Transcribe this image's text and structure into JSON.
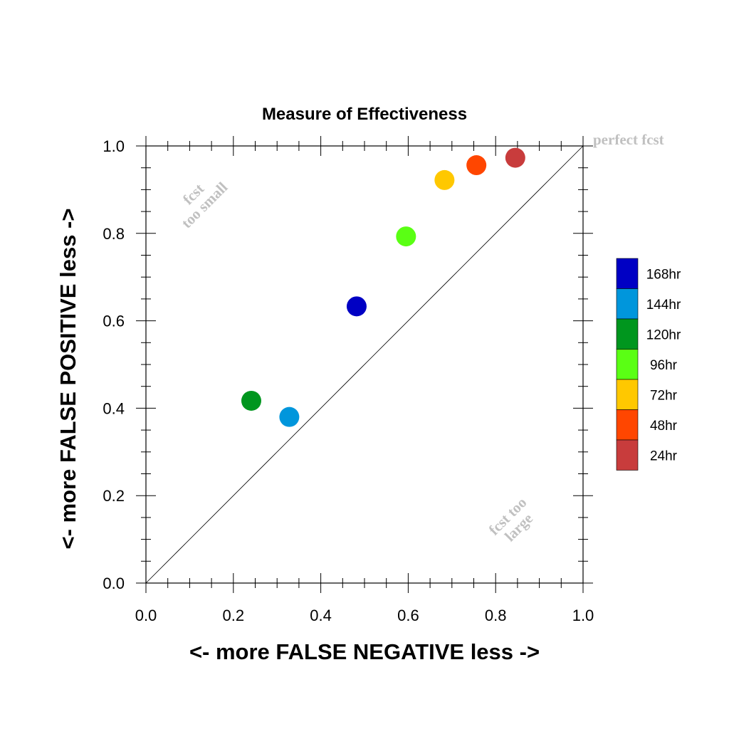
{
  "chart_data": {
    "type": "scatter",
    "title": "Measure of Effectiveness",
    "xlabel": "<- more   FALSE NEGATIVE   less ->",
    "ylabel": "<- more   FALSE POSITIVE   less ->",
    "xlim": [
      0.0,
      1.0
    ],
    "ylim": [
      0.0,
      1.0
    ],
    "x_ticks": [
      "0.0",
      "0.2",
      "0.4",
      "0.6",
      "0.8",
      "1.0"
    ],
    "y_ticks": [
      "0.0",
      "0.2",
      "0.4",
      "0.6",
      "0.8",
      "1.0"
    ],
    "grid": false,
    "reference_line": {
      "from": [
        0,
        0
      ],
      "to": [
        1,
        1
      ],
      "color": "#000000"
    },
    "annotations": {
      "perfect": "perfect fcst",
      "small_line1": "fcst",
      "small_line2": "too small",
      "large_line1": "fcst too",
      "large_line2": "large"
    },
    "legend_position": "right",
    "series": [
      {
        "name": "168hr",
        "color": "#0000c4",
        "x": 0.482,
        "y": 0.633
      },
      {
        "name": "144hr",
        "color": "#0096dc",
        "x": 0.328,
        "y": 0.38
      },
      {
        "name": "120hr",
        "color": "#00961e",
        "x": 0.241,
        "y": 0.417
      },
      {
        "name": "96hr",
        "color": "#5aff14",
        "x": 0.595,
        "y": 0.793
      },
      {
        "name": "72hr",
        "color": "#ffc800",
        "x": 0.683,
        "y": 0.922
      },
      {
        "name": "48hr",
        "color": "#ff4600",
        "x": 0.756,
        "y": 0.956
      },
      {
        "name": "24hr",
        "color": "#c83c3c",
        "x": 0.845,
        "y": 0.973
      }
    ]
  }
}
